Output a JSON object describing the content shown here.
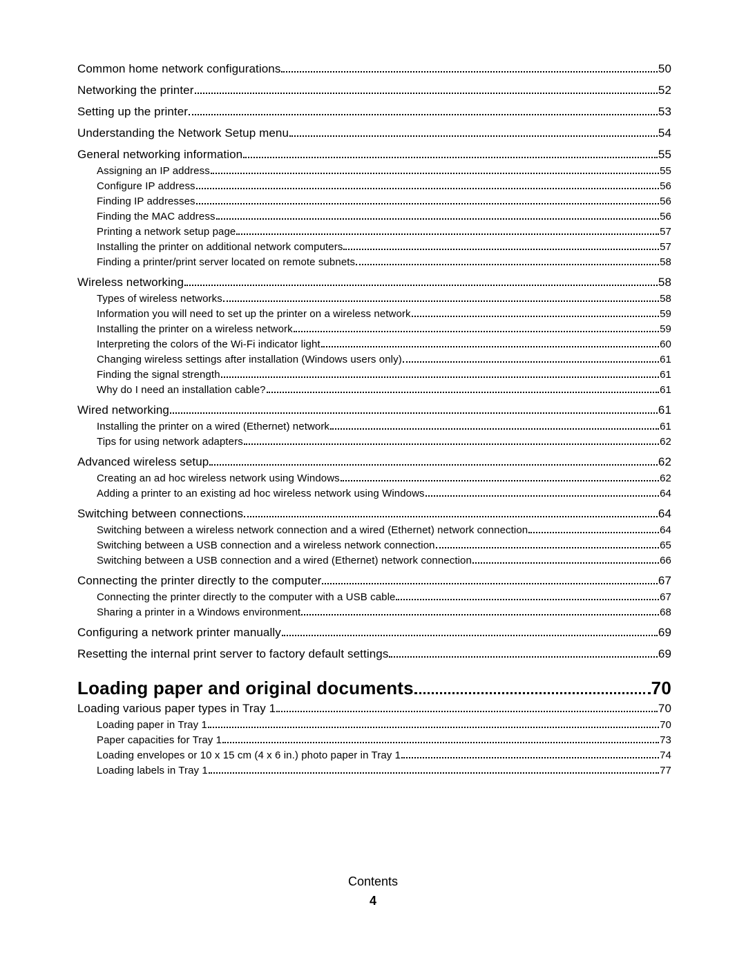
{
  "footer_label": "Contents",
  "footer_page": "4",
  "section_a": {
    "entries": [
      {
        "label": "Common home network configurations",
        "page": "50",
        "level": 1
      },
      {
        "label": "Networking the printer",
        "page": "52",
        "level": 1
      },
      {
        "label": "Setting up the printer",
        "page": "53",
        "level": 1
      },
      {
        "label": "Understanding the Network Setup menu",
        "page": "54",
        "level": 1
      },
      {
        "label": "General networking information",
        "page": "55",
        "level": 1
      },
      {
        "label": "Assigning an IP address",
        "page": "55",
        "level": 2
      },
      {
        "label": "Configure IP address",
        "page": "56",
        "level": 2
      },
      {
        "label": "Finding IP addresses",
        "page": "56",
        "level": 2
      },
      {
        "label": "Finding the MAC address",
        "page": "56",
        "level": 2
      },
      {
        "label": "Printing a network setup page",
        "page": "57",
        "level": 2
      },
      {
        "label": "Installing the printer on additional network computers",
        "page": "57",
        "level": 2
      },
      {
        "label": "Finding a printer/print server located on remote subnets",
        "page": "58",
        "level": 2
      },
      {
        "label": "Wireless networking",
        "page": "58",
        "level": 1
      },
      {
        "label": "Types of wireless networks",
        "page": "58",
        "level": 2
      },
      {
        "label": "Information you will need to set up the printer on a wireless network",
        "page": "59",
        "level": 2
      },
      {
        "label": "Installing the printer on a wireless network",
        "page": "59",
        "level": 2
      },
      {
        "label": "Interpreting the colors of the Wi-Fi indicator light",
        "page": "60",
        "level": 2
      },
      {
        "label": "Changing wireless settings after installation (Windows users only)",
        "page": "61",
        "level": 2
      },
      {
        "label": "Finding the signal strength",
        "page": "61",
        "level": 2
      },
      {
        "label": "Why do I need an installation cable?",
        "page": "61",
        "level": 2
      },
      {
        "label": "Wired networking",
        "page": "61",
        "level": 1
      },
      {
        "label": "Installing the printer on a wired (Ethernet) network",
        "page": "61",
        "level": 2
      },
      {
        "label": "Tips for using network adapters",
        "page": "62",
        "level": 2
      },
      {
        "label": "Advanced wireless setup",
        "page": "62",
        "level": 1
      },
      {
        "label": "Creating an ad hoc wireless network using Windows",
        "page": "62",
        "level": 2
      },
      {
        "label": "Adding a printer to an existing ad hoc wireless network using Windows",
        "page": "64",
        "level": 2
      },
      {
        "label": "Switching between connections",
        "page": "64",
        "level": 1
      },
      {
        "label": "Switching between a wireless network connection and a wired (Ethernet) network connection",
        "page": "64",
        "level": 2
      },
      {
        "label": "Switching between a USB connection and a wireless network connection",
        "page": "65",
        "level": 2
      },
      {
        "label": "Switching between a USB connection and a wired (Ethernet) network connection",
        "page": "66",
        "level": 2
      },
      {
        "label": "Connecting the printer directly to the computer",
        "page": "67",
        "level": 1
      },
      {
        "label": "Connecting the printer directly to the computer with a USB cable",
        "page": "67",
        "level": 2
      },
      {
        "label": "Sharing a printer in a Windows environment",
        "page": "68",
        "level": 2
      },
      {
        "label": "Configuring a network printer manually",
        "page": "69",
        "level": 1
      },
      {
        "label": "Resetting the internal print server to factory default settings",
        "page": "69",
        "level": 1
      }
    ]
  },
  "chapter": {
    "label": "Loading paper and original documents",
    "page": "70"
  },
  "section_b": {
    "entries": [
      {
        "label": "Loading various paper types in Tray 1",
        "page": "70",
        "level": 1
      },
      {
        "label": "Loading paper in Tray 1",
        "page": "70",
        "level": 2
      },
      {
        "label": "Paper capacities for Tray 1",
        "page": "73",
        "level": 2
      },
      {
        "label": "Loading envelopes or 10 x 15 cm (4 x 6 in.) photo paper in Tray 1",
        "page": "74",
        "level": 2
      },
      {
        "label": "Loading labels in Tray 1",
        "page": "77",
        "level": 2
      }
    ]
  }
}
